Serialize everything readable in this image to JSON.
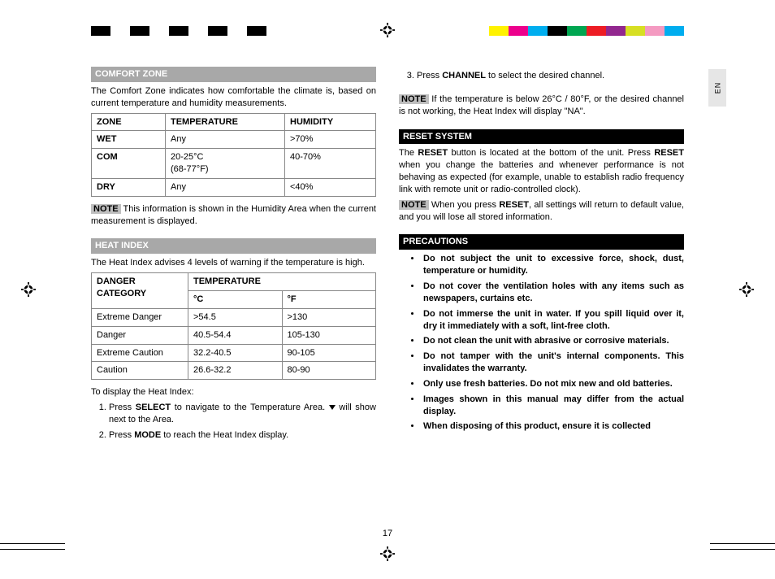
{
  "colorbar_left": [
    "#000000",
    "#ffffff",
    "#000000",
    "#ffffff",
    "#000000",
    "#ffffff",
    "#000000",
    "#ffffff",
    "#000000",
    "#ffffff"
  ],
  "colorbar_right": [
    "#fff200",
    "#ec008c",
    "#00aeef",
    "#000000",
    "#00a651",
    "#ed1c24",
    "#92278f",
    "#d7df23",
    "#f49ac1",
    "#00adef"
  ],
  "lang": "EN",
  "pagenum": "17",
  "left": {
    "comfort_title": "COMFORT ZONE",
    "comfort_intro": "The Comfort Zone indicates how comfortable the climate is, based on current temperature and humidity measurements.",
    "zone_headers": [
      "ZONE",
      "TEMPERATURE",
      "HUMIDITY"
    ],
    "zone_rows": [
      [
        "WET",
        "Any",
        ">70%"
      ],
      [
        "COM",
        "20-25°C\n(68-77°F)",
        "40-70%"
      ],
      [
        "DRY",
        "Any",
        "<40%"
      ]
    ],
    "note1_label": "NOTE",
    "note1_text": " This information is shown in the Humidity Area when the current measurement is displayed.",
    "heatindex_title": "HEAT INDEX",
    "heatindex_intro": "The Heat Index advises 4 levels of warning if the temperature is high.",
    "hi_cat_header": "DANGER CATEGORY",
    "hi_temp_header": "TEMPERATURE",
    "hi_sub_c": "°C",
    "hi_sub_f": "°F",
    "hi_rows": [
      [
        "Extreme Danger",
        ">54.5",
        ">130"
      ],
      [
        "Danger",
        "40.5-54.4",
        "105-130"
      ],
      [
        "Extreme Caution",
        "32.2-40.5",
        "90-105"
      ],
      [
        "Caution",
        "26.6-32.2",
        "80-90"
      ]
    ],
    "display_intro": "To display the Heat Index:",
    "step1_pre": "Press ",
    "step1_b1": "SELECT",
    "step1_mid": " to navigate to the Temperature Area. ",
    "step1_post": " will show next to the Area.",
    "step2_pre": "Press ",
    "step2_b1": "MODE",
    "step2_post": " to reach the Heat Index display."
  },
  "right": {
    "step3_pre": "Press ",
    "step3_b1": "CHANNEL",
    "step3_post": " to select the desired channel.",
    "note2_label": "NOTE",
    "note2_text": " If the temperature is below 26°C / 80°F, or the desired channel is not working, the Heat Index will display \"NA\".",
    "reset_title": "RESET SYSTEM",
    "reset_p1a": "The ",
    "reset_p1b": "RESET",
    "reset_p1c": " button is located at the bottom of the unit. Press ",
    "reset_p1d": "RESET",
    "reset_p1e": " when you change the batteries and whenever performance is not behaving as expected (for example, unable to establish radio frequency link with remote unit or radio-controlled clock).",
    "note3_label": "NOTE",
    "note3a": " When you press ",
    "note3b": "RESET",
    "note3c": ", all settings will return to default value, and you will lose all stored information.",
    "prec_title": "PRECAUTIONS",
    "prec": [
      "Do not subject the unit to excessive force, shock, dust, temperature or humidity.",
      "Do not cover the ventilation holes with any items such as newspapers, curtains etc.",
      "Do not immerse the unit in water. If you spill liquid over it, dry it immediately with a soft, lint-free cloth.",
      "Do not clean the unit with abrasive or corrosive materials.",
      "Do not tamper with the unit's internal components. This invalidates the warranty.",
      "Only use fresh batteries. Do not mix new and old batteries.",
      "Images shown in this manual may differ from the actual display.",
      "When disposing of this product, ensure it is collected"
    ]
  }
}
